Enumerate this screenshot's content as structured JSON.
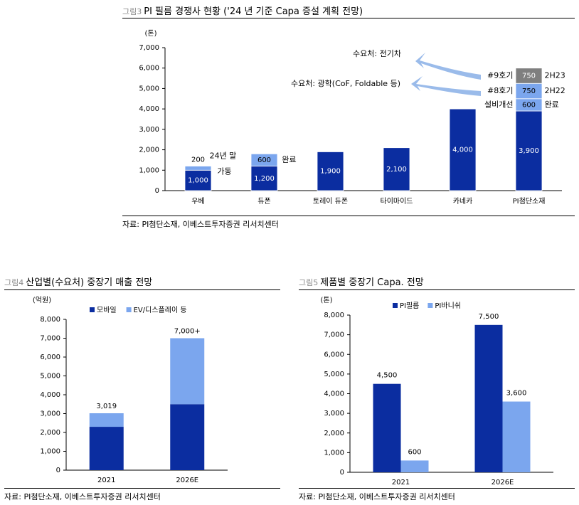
{
  "colors": {
    "dark": "#0B2DA0",
    "light": "#7BA6EE",
    "gray": "#7F7F7F",
    "arrow": "#8FB4E8"
  },
  "fig3": {
    "num": "그림3",
    "title": "PI 필름 경쟁사 현황 ('24 년 기준 Capa 증설 계획 전망)",
    "source": "자료: PI첨단소재, 이베스트투자증권 리서치센터"
  },
  "fig4": {
    "num": "그림4",
    "title": "산업별(수요처) 중장기 매출 전망",
    "source": "자료: PI첨단소재, 이베스트투자증권 리서치센터"
  },
  "fig5": {
    "num": "그림5",
    "title": "제품별 중장기 Capa. 전망",
    "source": "자료: PI첨단소재, 이베스트투자증권 리서치센터"
  },
  "chart_data": [
    {
      "type": "bar",
      "stacked": true,
      "unit": "(톤)",
      "categories": [
        "우베",
        "듀폰",
        "토레이 듀폰",
        "타이마이드",
        "카네카",
        "PI첨단소재"
      ],
      "yticks": [
        "0",
        "1,000",
        "2,000",
        "3,000",
        "4,000",
        "5,000",
        "6,000",
        "7,000"
      ],
      "ylim": [
        0,
        7000
      ],
      "grid": false,
      "segments": [
        [
          {
            "value": 1000,
            "label": "1,000",
            "color": "dark"
          },
          {
            "value": 200,
            "label": "200",
            "color": "light"
          }
        ],
        [
          {
            "value": 1200,
            "label": "1,200",
            "color": "dark"
          },
          {
            "value": 600,
            "label": "600",
            "color": "light"
          }
        ],
        [
          {
            "value": 1900,
            "label": "1,900",
            "color": "dark"
          }
        ],
        [
          {
            "value": 2100,
            "label": "2,100",
            "color": "dark"
          }
        ],
        [
          {
            "value": 4000,
            "label": "4,000",
            "color": "dark"
          }
        ],
        [
          {
            "value": 3900,
            "label": "3,900",
            "color": "dark"
          },
          {
            "value": 600,
            "label": "600",
            "color": "light"
          },
          {
            "value": 750,
            "label": "750",
            "color": "light"
          },
          {
            "value": 750,
            "label": "750",
            "color": "gray"
          }
        ]
      ],
      "annotations": {
        "ube_note_1": "24년 말",
        "ube_note_2": "가동",
        "dupont_note": "완료",
        "pi_done": "완료",
        "pi_2h22": "2H22",
        "pi_2h23": "2H23",
        "pi_improve": "설비개선",
        "pi_no8": "#8호기",
        "pi_no9": "#9호기",
        "demand_ev": "수요처: 전기차",
        "demand_optical": "수요처: 광학(CoF, Foldable 등)"
      }
    },
    {
      "type": "bar",
      "stacked": true,
      "unit": "(억원)",
      "categories": [
        "2021",
        "2026E"
      ],
      "yticks": [
        "0",
        "1,000",
        "2,000",
        "3,000",
        "4,000",
        "5,000",
        "6,000",
        "7,000",
        "8,000"
      ],
      "ylim": [
        0,
        8000
      ],
      "legend_position": "top",
      "series": [
        {
          "name": "모바일",
          "color": "dark",
          "values": [
            2300,
            3500
          ]
        },
        {
          "name": "EV/디스플레이 등",
          "color": "light",
          "values": [
            719,
            3500
          ]
        }
      ],
      "total_labels": [
        "3,019",
        "7,000+"
      ]
    },
    {
      "type": "bar",
      "stacked": false,
      "unit": "(톤)",
      "categories": [
        "2021",
        "2026E"
      ],
      "yticks": [
        "0",
        "1,000",
        "2,000",
        "3,000",
        "4,000",
        "5,000",
        "6,000",
        "7,000",
        "8,000"
      ],
      "ylim": [
        0,
        8000
      ],
      "legend_position": "top",
      "series": [
        {
          "name": "PI필름",
          "color": "dark",
          "values": [
            4500,
            7500
          ],
          "labels": [
            "4,500",
            "7,500"
          ]
        },
        {
          "name": "PI바니쉬",
          "color": "light",
          "values": [
            600,
            3600
          ],
          "labels": [
            "600",
            "3,600"
          ]
        }
      ]
    }
  ]
}
